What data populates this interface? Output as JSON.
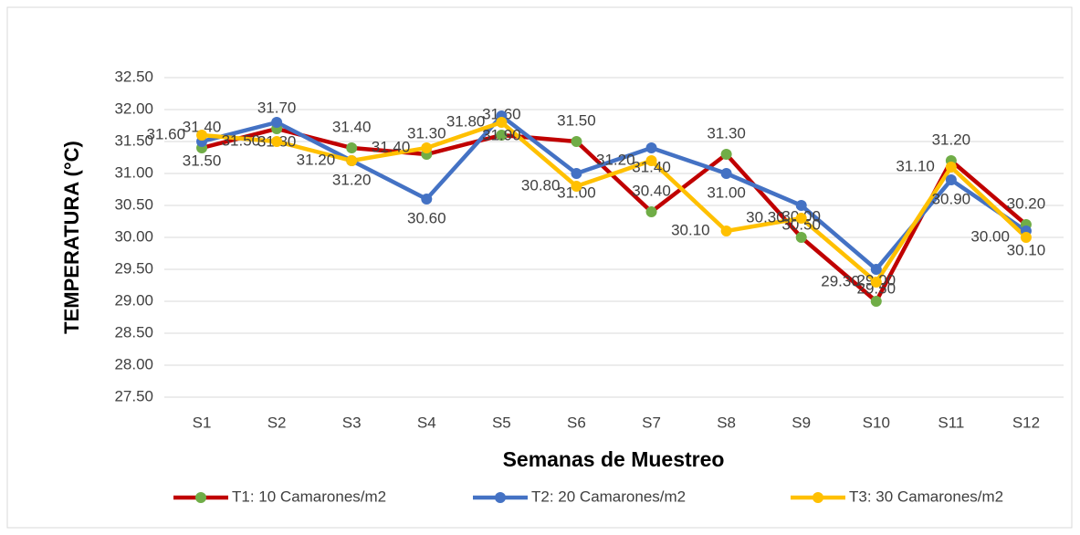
{
  "chart_data": {
    "type": "line",
    "y_label": "TEMPERATURA  (°C)",
    "x_label": "Semanas de Muestreo",
    "categories": [
      "S1",
      "S2",
      "S3",
      "S4",
      "S5",
      "S6",
      "S7",
      "S8",
      "S9",
      "S10",
      "S11",
      "S12"
    ],
    "series": [
      {
        "name": "T1: 10 Camarones/m2",
        "color": "#c00000",
        "marker_color": "#70ad47",
        "values": [
          31.4,
          31.7,
          31.4,
          31.3,
          31.6,
          31.5,
          30.4,
          31.3,
          30.0,
          29.0,
          31.2,
          30.2
        ],
        "value_labels": [
          "31.40",
          "31.70",
          "31.40",
          "31.30",
          "31.60",
          "31.50",
          "30.40",
          "31.30",
          "30.00",
          "29.00",
          "31.20",
          "30.20"
        ]
      },
      {
        "name": "T2: 20 Camarones/m2",
        "color": "#4472c4",
        "marker_color": "#4472c4",
        "values": [
          31.5,
          31.8,
          31.2,
          30.6,
          31.9,
          31.0,
          31.4,
          31.0,
          30.5,
          29.5,
          30.9,
          30.1
        ],
        "value_labels": [
          "31.50",
          "31.80",
          "31.20",
          "30.60",
          "31.90",
          "31.00",
          "31.40",
          "31.00",
          "30.50",
          "29.50",
          "30.90",
          "30.10"
        ]
      },
      {
        "name": "T3: 30 Camarones/m2",
        "color": "#ffc000",
        "marker_color": "#ffc000",
        "values": [
          31.6,
          31.5,
          31.2,
          31.4,
          31.8,
          30.8,
          31.2,
          30.1,
          30.3,
          29.3,
          31.1,
          30.0
        ],
        "value_labels": [
          "31.60",
          "31.50",
          "31.20",
          "31.40",
          "31.80",
          "30.80",
          "31.20",
          "30.10",
          "30.30",
          "29.30",
          "31.10",
          "30.00"
        ]
      }
    ],
    "ylim": [
      27.5,
      32.5
    ],
    "yticks": [
      {
        "value": 27.5,
        "label": "27.50"
      },
      {
        "value": 28,
        "label": "28.00"
      },
      {
        "value": 28.5,
        "label": "28.50"
      },
      {
        "value": 29,
        "label": "29.00"
      },
      {
        "value": 29.5,
        "label": "29.50"
      },
      {
        "value": 30,
        "label": "30.00"
      },
      {
        "value": 30.5,
        "label": "30.50"
      },
      {
        "value": 31,
        "label": "31.00"
      },
      {
        "value": 31.5,
        "label": "31.50"
      },
      {
        "value": 32,
        "label": "32.00"
      },
      {
        "value": 32.5,
        "label": "32.50"
      }
    ],
    "grid": true,
    "legend": "bottom"
  }
}
